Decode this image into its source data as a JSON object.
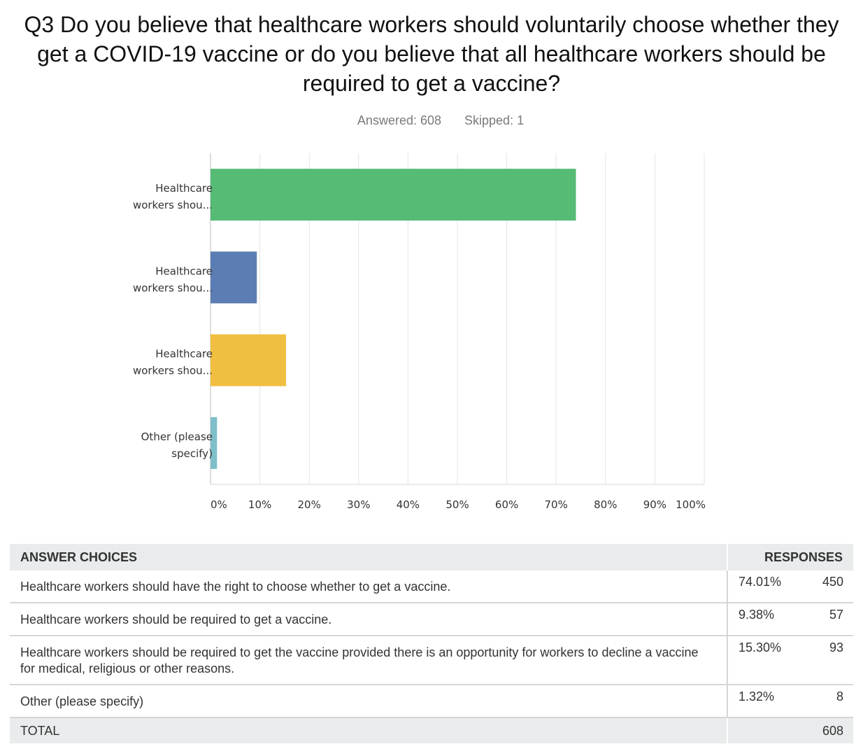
{
  "question": "Q3 Do you believe that healthcare workers should voluntarily choose whether they get a COVID-19 vaccine or do you believe that all healthcare workers should be required to get a vaccine?",
  "answered": "Answered: 608",
  "skipped": "Skipped: 1",
  "colors": [
    "#55bb75",
    "#5b7db3",
    "#f0be40",
    "#7fbfc9"
  ],
  "chart_data": {
    "type": "bar",
    "orientation": "horizontal",
    "categories": [
      [
        "Healthcare",
        "workers shou..."
      ],
      [
        "Healthcare",
        "workers shou..."
      ],
      [
        "Healthcare",
        "workers shou..."
      ],
      [
        "Other (please",
        "specify)"
      ]
    ],
    "values": [
      74.01,
      9.38,
      15.3,
      1.32
    ],
    "xlim": [
      0,
      100
    ],
    "xticks": [
      "0%",
      "10%",
      "20%",
      "30%",
      "40%",
      "50%",
      "60%",
      "70%",
      "80%",
      "90%",
      "100%"
    ],
    "grid": true
  },
  "table": {
    "header_choices": "ANSWER CHOICES",
    "header_responses": "RESPONSES",
    "rows": [
      {
        "choice": "Healthcare workers should have the right to choose whether to get a vaccine.",
        "pct": "74.01%",
        "count": "450"
      },
      {
        "choice": "Healthcare workers should be required to get a vaccine.",
        "pct": "9.38%",
        "count": "57"
      },
      {
        "choice": "Healthcare workers should be required to get the vaccine provided there is an opportunity for workers to decline a vaccine for medical, religious or other reasons.",
        "pct": "15.30%",
        "count": "93"
      },
      {
        "choice": "Other (please specify)",
        "pct": "1.32%",
        "count": "8"
      }
    ],
    "total_label": "TOTAL",
    "total_value": "608"
  }
}
